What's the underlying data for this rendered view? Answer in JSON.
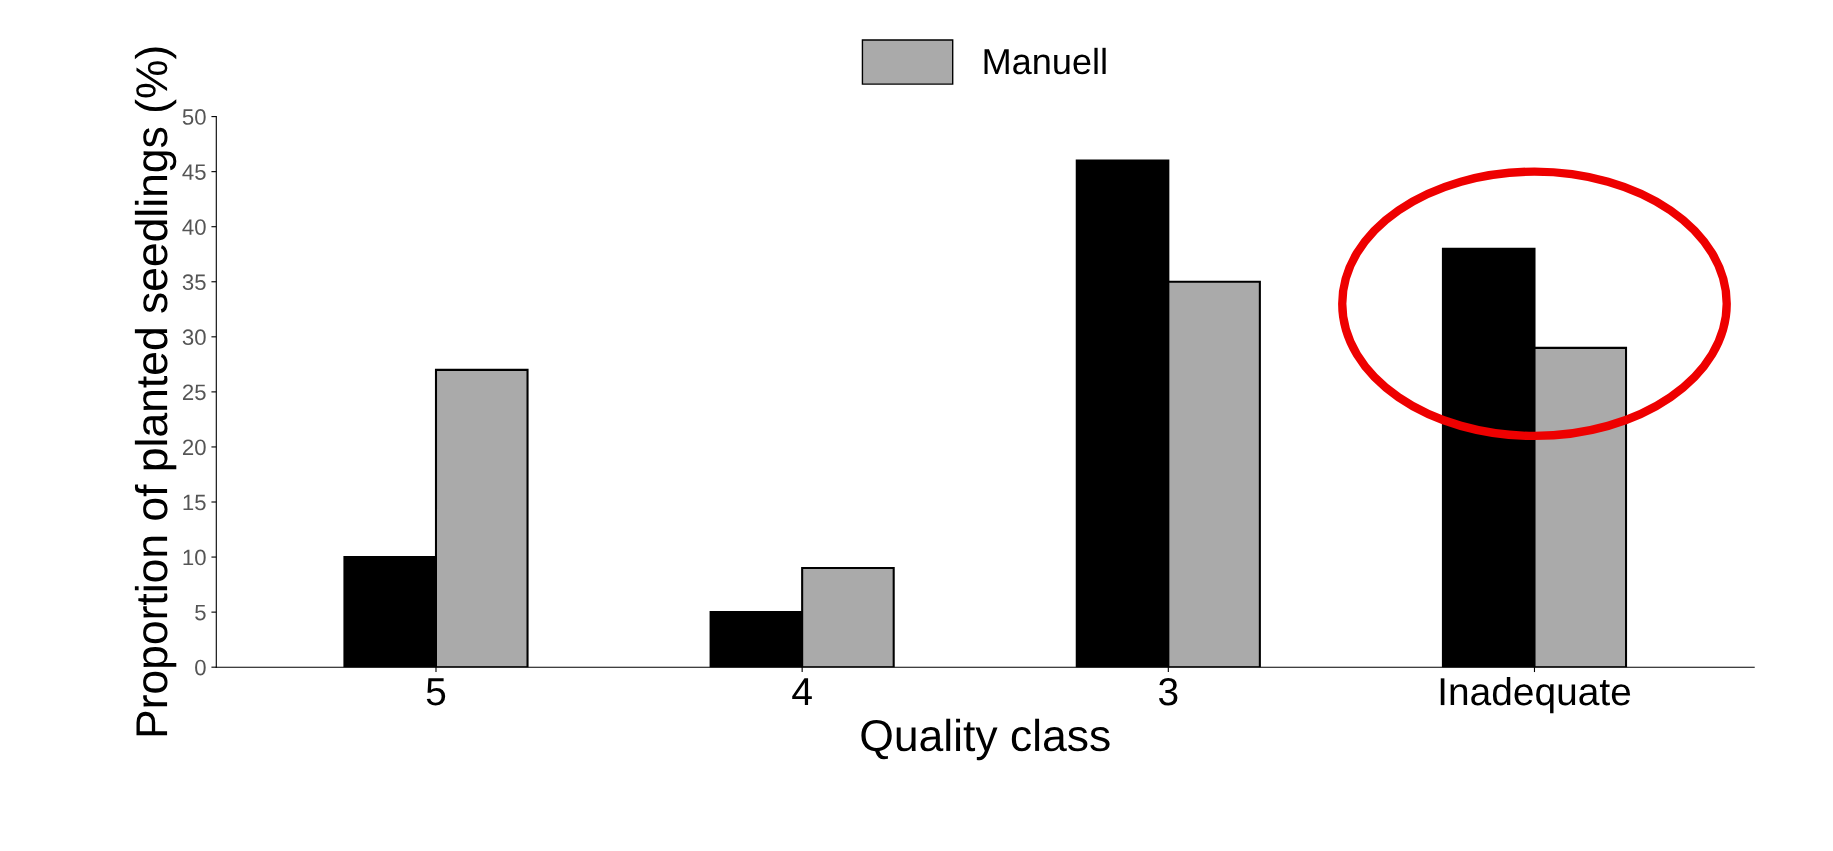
{
  "chart_data": {
    "type": "bar",
    "xlabel": "Quality class",
    "ylabel": "Proportion of planted seedlings (%)",
    "categories": [
      "5",
      "4",
      "3",
      "Inadequate"
    ],
    "series": [
      {
        "color": "#000000",
        "values": [
          10,
          5,
          46,
          38
        ]
      },
      {
        "name": "Manuell",
        "color": "#aaaaaa",
        "values": [
          27,
          9,
          35,
          29
        ]
      }
    ],
    "ylim": [
      0,
      50
    ],
    "yticks": [
      0,
      5,
      10,
      15,
      20,
      25,
      30,
      35,
      40,
      45,
      50
    ],
    "grid": false,
    "legend": "top"
  }
}
